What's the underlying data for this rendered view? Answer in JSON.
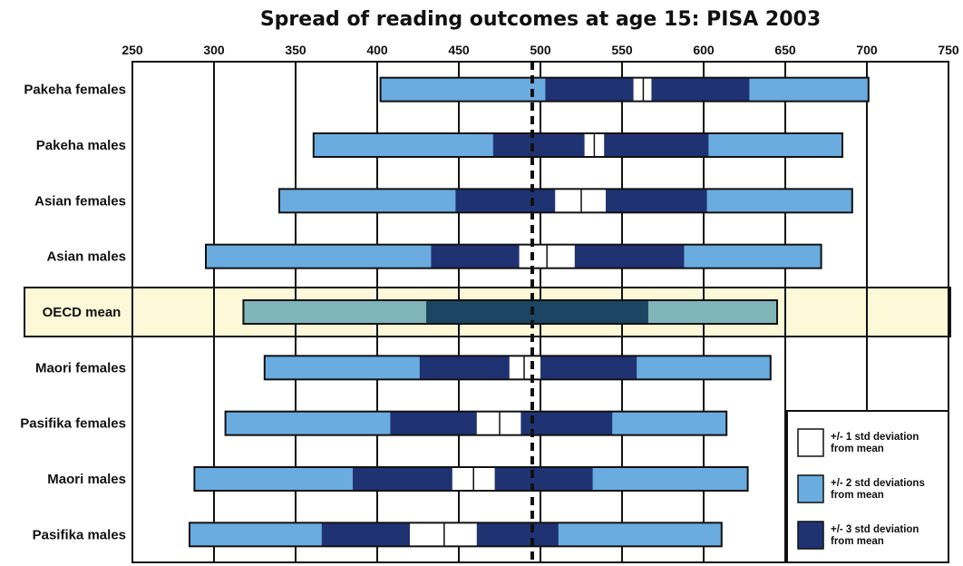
{
  "chart_data": {
    "type": "bar",
    "title": "Spread of reading outcomes at age 15: PISA 2003",
    "x_axis": {
      "range": [
        250,
        750
      ],
      "ticks": [
        250,
        300,
        350,
        400,
        450,
        500,
        550,
        600,
        650,
        700,
        750
      ],
      "position": "top"
    },
    "reference_line": {
      "x": 495,
      "style": "dashed"
    },
    "grid": "vertical",
    "legend": {
      "position": "bottom-right",
      "entries": [
        {
          "label_lines": [
            "+/- 1 std deviation",
            "from mean"
          ],
          "color": "#ffffff"
        },
        {
          "label_lines": [
            "+/- 2 std deviations",
            "from mean"
          ],
          "color": "#6aacdf"
        },
        {
          "label_lines": [
            "+/- 3 std deviation",
            "from mean"
          ],
          "color": "#1f3373"
        }
      ]
    },
    "series": [
      {
        "name": "Pakeha females",
        "values": [
          402,
          503,
          557,
          563,
          568,
          628,
          701
        ],
        "highlight": false
      },
      {
        "name": "Pakeha males",
        "values": [
          361,
          471,
          527,
          533,
          539,
          603,
          685
        ],
        "highlight": false
      },
      {
        "name": "Asian females",
        "values": [
          340,
          448,
          509,
          525,
          540,
          602,
          691
        ],
        "highlight": false
      },
      {
        "name": "Asian males",
        "values": [
          295,
          433,
          487,
          504,
          521,
          588,
          672
        ],
        "highlight": false
      },
      {
        "name": "OECD mean",
        "values": [
          318,
          430,
          430,
          430,
          566,
          566,
          645
        ],
        "highlight": true
      },
      {
        "name": "Maori females",
        "values": [
          331,
          426,
          481,
          490,
          500,
          559,
          641
        ],
        "highlight": false
      },
      {
        "name": "Pasifika females",
        "values": [
          307,
          408,
          461,
          475,
          488,
          544,
          614
        ],
        "highlight": false
      },
      {
        "name": "Maori males",
        "values": [
          288,
          385,
          446,
          459,
          472,
          532,
          627
        ],
        "highlight": false
      },
      {
        "name": "Pasifika males",
        "values": [
          285,
          366,
          420,
          441,
          461,
          511,
          611
        ],
        "highlight": false
      }
    ],
    "value_order": [
      "-3sd",
      "-2sd",
      "-1sd",
      "mean",
      "+1sd",
      "+2sd",
      "+3sd"
    ],
    "colors": {
      "sd1": "#ffffff",
      "sd2": "#6aacdf",
      "sd3": "#1f3373",
      "oecd_outer": "#7fb4b9",
      "oecd_inner": "#1b4563",
      "oecd_band": "#fdf9d8",
      "outline": "#111111"
    }
  }
}
